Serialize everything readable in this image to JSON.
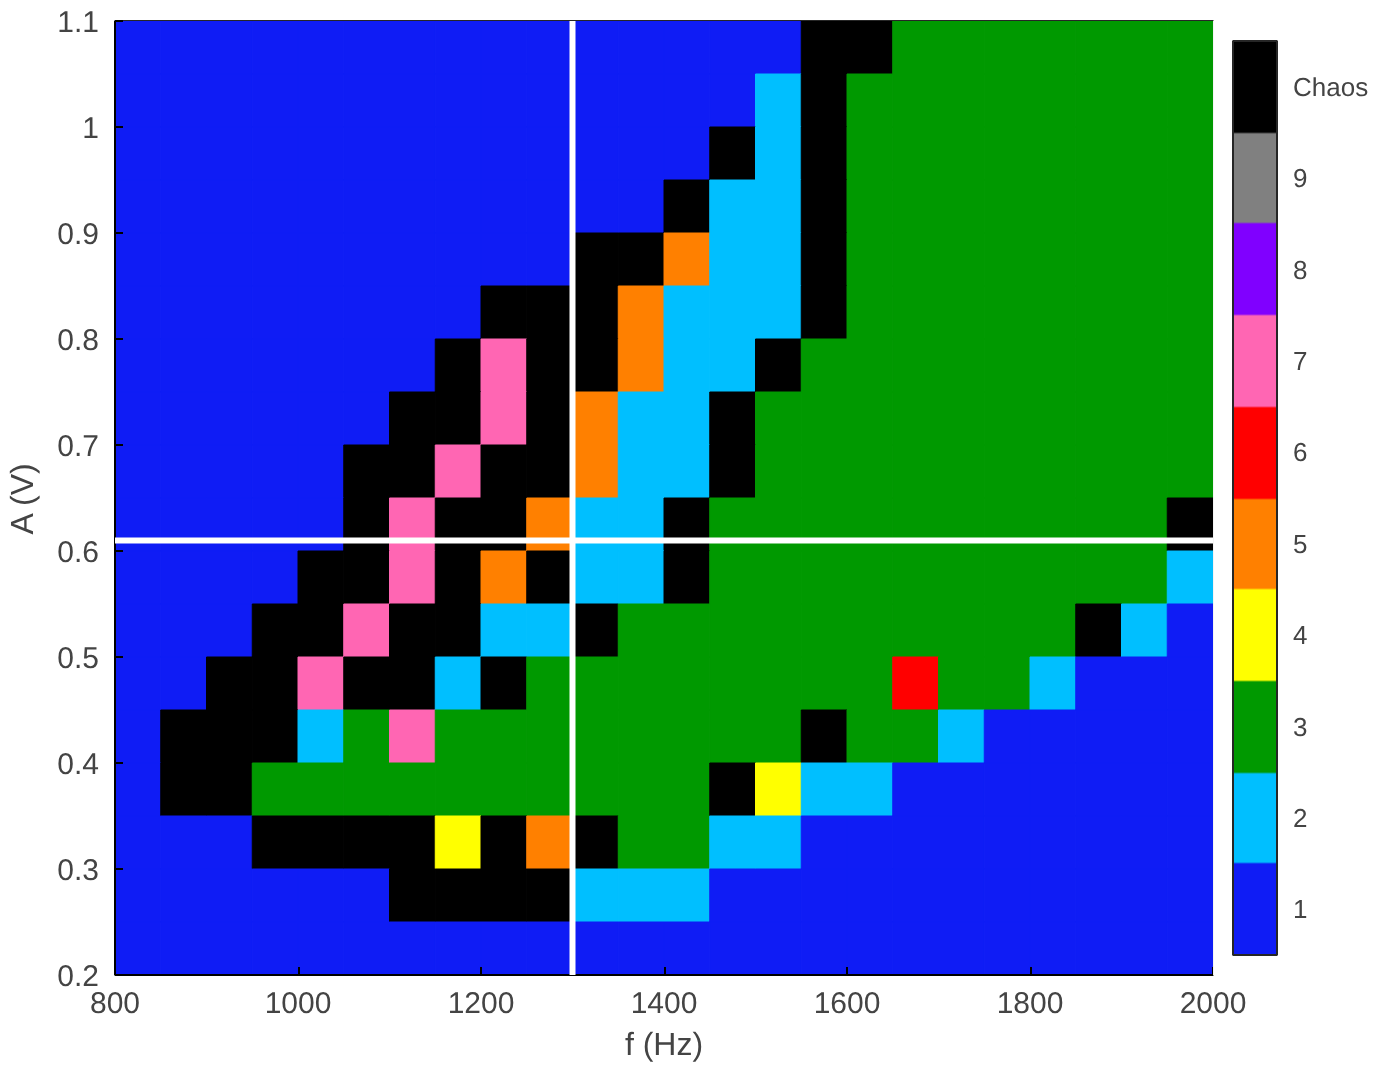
{
  "chart_data": {
    "type": "heatmap",
    "xlabel": "f (Hz)",
    "ylabel": "A (V)",
    "x": [
      825,
      875,
      925,
      975,
      1025,
      1075,
      1125,
      1175,
      1225,
      1275,
      1325,
      1375,
      1425,
      1475,
      1525,
      1575,
      1625,
      1675,
      1725,
      1775,
      1825,
      1875,
      1925,
      1975
    ],
    "y": [
      1.075,
      1.025,
      0.975,
      0.925,
      0.875,
      0.825,
      0.775,
      0.725,
      0.675,
      0.625,
      0.575,
      0.525,
      0.475,
      0.425,
      0.375,
      0.325,
      0.275,
      0.225
    ],
    "xlim": [
      800,
      2000
    ],
    "ylim": [
      0.2,
      1.1
    ],
    "xticks": [
      800,
      1000,
      1200,
      1400,
      1600,
      1800,
      2000
    ],
    "yticks": [
      0.2,
      0.3,
      0.4,
      0.5,
      0.6,
      0.7,
      0.8,
      0.9,
      1,
      1.1
    ],
    "clim": [
      0.5,
      10.5
    ],
    "cticks": [
      1,
      2,
      3,
      4,
      5,
      6,
      7,
      8,
      9,
      {
        "value": 10,
        "label": "Chaos"
      }
    ],
    "colors": [
      "#0f1cf5",
      "#00bfff",
      "#009900",
      "#ffff00",
      "#ff8000",
      "#ff0000",
      "#ff66b3",
      "#8000ff",
      "#808080",
      "#000000"
    ],
    "ref_lines": [
      {
        "axis": "x",
        "value": 1300,
        "color": "#ffffff"
      },
      {
        "axis": "y",
        "value": 0.61,
        "color": "#ffffff"
      }
    ],
    "cells": [
      [
        1,
        1,
        1,
        1,
        1,
        1,
        1,
        1,
        1,
        1,
        1,
        1,
        1,
        1,
        1,
        10,
        10,
        3,
        3,
        3,
        3,
        3,
        3,
        3
      ],
      [
        1,
        1,
        1,
        1,
        1,
        1,
        1,
        1,
        1,
        1,
        1,
        1,
        1,
        1,
        2,
        10,
        3,
        3,
        3,
        3,
        3,
        3,
        3,
        3
      ],
      [
        1,
        1,
        1,
        1,
        1,
        1,
        1,
        1,
        1,
        1,
        1,
        1,
        1,
        10,
        2,
        10,
        3,
        3,
        3,
        3,
        3,
        3,
        3,
        3
      ],
      [
        1,
        1,
        1,
        1,
        1,
        1,
        1,
        1,
        1,
        1,
        1,
        1,
        10,
        2,
        2,
        10,
        3,
        3,
        3,
        3,
        3,
        3,
        3,
        3
      ],
      [
        1,
        1,
        1,
        1,
        1,
        1,
        1,
        1,
        1,
        1,
        10,
        10,
        5,
        2,
        2,
        10,
        3,
        3,
        3,
        3,
        3,
        3,
        3,
        3
      ],
      [
        1,
        1,
        1,
        1,
        1,
        1,
        1,
        1,
        10,
        10,
        10,
        5,
        2,
        2,
        2,
        10,
        3,
        3,
        3,
        3,
        3,
        3,
        3,
        3
      ],
      [
        1,
        1,
        1,
        1,
        1,
        1,
        1,
        10,
        7,
        10,
        10,
        5,
        2,
        2,
        10,
        3,
        3,
        3,
        3,
        3,
        3,
        3,
        3,
        3
      ],
      [
        1,
        1,
        1,
        1,
        1,
        1,
        10,
        10,
        7,
        10,
        5,
        2,
        2,
        10,
        3,
        3,
        3,
        3,
        3,
        3,
        3,
        3,
        3,
        3
      ],
      [
        1,
        1,
        1,
        1,
        1,
        10,
        10,
        7,
        10,
        10,
        5,
        2,
        2,
        10,
        3,
        3,
        3,
        3,
        3,
        3,
        3,
        3,
        3,
        3
      ],
      [
        1,
        1,
        1,
        1,
        1,
        10,
        7,
        10,
        10,
        5,
        2,
        2,
        10,
        3,
        3,
        3,
        3,
        3,
        3,
        3,
        3,
        3,
        3,
        10
      ],
      [
        1,
        1,
        1,
        1,
        10,
        10,
        7,
        10,
        5,
        10,
        2,
        2,
        10,
        3,
        3,
        3,
        3,
        3,
        3,
        3,
        3,
        3,
        3,
        2
      ],
      [
        1,
        1,
        1,
        10,
        10,
        7,
        10,
        10,
        2,
        2,
        10,
        3,
        3,
        3,
        3,
        3,
        3,
        3,
        3,
        3,
        3,
        10,
        2,
        1
      ],
      [
        1,
        1,
        10,
        10,
        7,
        10,
        10,
        2,
        10,
        3,
        3,
        3,
        3,
        3,
        3,
        3,
        3,
        6,
        3,
        3,
        2,
        1,
        1,
        1
      ],
      [
        1,
        10,
        10,
        10,
        2,
        3,
        7,
        3,
        3,
        3,
        3,
        3,
        3,
        3,
        3,
        10,
        3,
        3,
        2,
        1,
        1,
        1,
        1,
        1
      ],
      [
        1,
        10,
        10,
        3,
        3,
        3,
        3,
        3,
        3,
        3,
        3,
        3,
        3,
        10,
        4,
        2,
        2,
        1,
        1,
        1,
        1,
        1,
        1,
        1
      ],
      [
        1,
        1,
        1,
        10,
        10,
        10,
        10,
        4,
        10,
        5,
        10,
        3,
        3,
        2,
        2,
        1,
        1,
        1,
        1,
        1,
        1,
        1,
        1,
        1
      ],
      [
        1,
        1,
        1,
        1,
        1,
        1,
        10,
        10,
        10,
        10,
        2,
        2,
        2,
        1,
        1,
        1,
        1,
        1,
        1,
        1,
        1,
        1,
        1,
        1
      ],
      [
        1,
        1,
        1,
        1,
        1,
        1,
        1,
        1,
        1,
        1,
        1,
        1,
        1,
        1,
        1,
        1,
        1,
        1,
        1,
        1,
        1,
        1,
        1,
        1
      ]
    ]
  }
}
